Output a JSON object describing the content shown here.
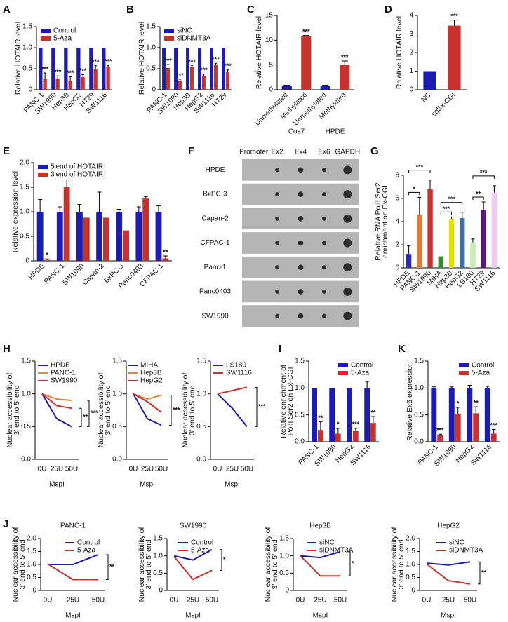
{
  "chart_data": [
    {
      "type": "bar",
      "label": "A",
      "ylabel": "Relative HOTAIR level",
      "categories": [
        "PANC-1",
        "SW1990",
        "Hep3B",
        "HepG2",
        "HT29",
        "SW1116"
      ],
      "series": [
        {
          "name": "Control",
          "color": "#1c1cb4",
          "values": [
            1,
            1,
            1,
            1,
            1,
            1
          ]
        },
        {
          "name": "5-Aza",
          "color": "#c8322c",
          "values": [
            0.25,
            0.27,
            0.21,
            0.3,
            0.49,
            0.55
          ],
          "errors": [
            0.15,
            0.06,
            0.1,
            0.06,
            0.08,
            0.03
          ],
          "significance": [
            "***",
            "***",
            "***",
            "***",
            "***",
            "***"
          ]
        }
      ],
      "ylim": [
        0,
        1.5
      ],
      "yticks": [
        0,
        0.5,
        {
          "value": 1,
          "label": "1.0"
        },
        1.5
      ],
      "legend": "upper left"
    },
    {
      "type": "bar",
      "label": "B",
      "ylabel": "Relative HOTAIR level",
      "categories": [
        "PANC-1",
        "SW1990",
        "Hep3B",
        "HepG2",
        "SW1116",
        "HT29"
      ],
      "series": [
        {
          "name": "siNC",
          "color": "#1c1cb4",
          "values": [
            1,
            1,
            1,
            1,
            1,
            1
          ]
        },
        {
          "name": "siDNMT3A",
          "color": "#c8322c",
          "values": [
            0.52,
            0.22,
            0.55,
            0.33,
            0.6,
            0.42
          ],
          "errors": [
            0.08,
            0.03,
            0.02,
            0.04,
            0.03,
            0.05
          ],
          "significance": [
            "***",
            "***",
            "***",
            "***",
            "***",
            "***"
          ]
        }
      ],
      "ylim": [
        0,
        1.5
      ],
      "yticks": [
        0,
        0.5,
        {
          "value": 1,
          "label": "1.0"
        },
        1.5
      ],
      "legend": "upper left"
    },
    {
      "type": "bar",
      "label": "C",
      "ylabel": "Relative HOTAIR level",
      "categories": [
        "Unmethylated",
        "Methylated",
        "Unmethylated",
        "Methylated"
      ],
      "values": [
        0.8,
        10.8,
        0.8,
        5.0
      ],
      "errors": [
        0.1,
        0.15,
        0.1,
        0.8
      ],
      "colors": [
        "#1c1cb4",
        "#c8322c",
        "#1c1cb4",
        "#c8322c"
      ],
      "significance": [
        null,
        "***",
        null,
        "***"
      ],
      "groups": [
        "Cos7",
        "HPDE"
      ],
      "ylim": [
        0,
        15
      ],
      "yticks": [
        0,
        5,
        10,
        15
      ]
    },
    {
      "type": "bar",
      "label": "D",
      "ylabel": "Relative HOTAIR level",
      "categories": [
        "NC",
        "sgEx-CGI"
      ],
      "values": [
        1,
        3.45
      ],
      "errors": [
        0,
        0.3
      ],
      "colors": [
        "#1c1cb4",
        "#c8322c"
      ],
      "significance": [
        null,
        "***"
      ],
      "ylim": [
        0,
        4
      ],
      "yticks": [
        0,
        1,
        2,
        3,
        4
      ]
    },
    {
      "type": "bar",
      "label": "E",
      "ylabel": "Relative expression level",
      "categories": [
        "HPDE",
        "PANC-1",
        "SW1990",
        "Capan-2",
        "BxPC-3",
        "Panc0403",
        "CFPAC-1"
      ],
      "series": [
        {
          "name": "5'end of HOTAIR",
          "color": "#1c1cb4",
          "values": [
            1,
            1,
            1,
            1,
            1,
            1,
            1
          ],
          "errors": [
            0.25,
            0.1,
            0.15,
            0.4,
            0.05,
            0.1,
            0.12
          ]
        },
        {
          "name": "3'end of HOTAIR",
          "color": "#c8322c",
          "values": [
            0.02,
            1.5,
            0.88,
            0.88,
            0.62,
            1.27,
            0.05
          ],
          "errors": [
            0.02,
            0.15,
            0,
            0,
            0,
            0.04,
            0.05
          ],
          "significance": [
            "*",
            null,
            null,
            null,
            null,
            null,
            "**"
          ]
        }
      ],
      "ylim": [
        0,
        2
      ],
      "yticks": [
        0,
        0.5,
        {
          "value": 1,
          "label": "1.0"
        },
        1.5,
        {
          "value": 2,
          "label": "2.0"
        }
      ],
      "legend": "upper left"
    },
    {
      "type": "blot",
      "label": "F",
      "columns": [
        "Promoter",
        "Ex2",
        "Ex4",
        "Ex6",
        "GAPDH"
      ],
      "rows": [
        "HPDE",
        "BxPC-3",
        "Capan-2",
        "CFPAC-1",
        "Panc-1",
        "Panc0403",
        "SW1990"
      ]
    },
    {
      "type": "bar",
      "label": "G",
      "ylabel": [
        "Relative RNA PolII Ser2",
        "enrichment on Ex-CGI"
      ],
      "categories": [
        "HPDE",
        "PANC-1",
        "SW1990",
        "MIHA",
        "Hep3B",
        "HepG2",
        "LS180",
        "HT29",
        "SW1116"
      ],
      "values": [
        1.2,
        4.6,
        6.8,
        1.0,
        4.2,
        4.3,
        2.2,
        5.0,
        6.5
      ],
      "errors": [
        0.7,
        1.5,
        0.8,
        0,
        0.2,
        0.5,
        0.3,
        0.7,
        0.6
      ],
      "colors": [
        "#2b2bb8",
        "#e07b39",
        "#c93030",
        "#3a8a2e",
        "#e8e000",
        "#3f6fa8",
        "#c6ecb0",
        "#5b1a7a",
        "#f0c8f0"
      ],
      "comparisons": [
        {
          "text": "*",
          "between": [
            "HPDE",
            "PANC-1"
          ]
        },
        {
          "text": "***",
          "between": [
            "HPDE",
            "SW1990"
          ]
        },
        {
          "text": "***",
          "between": [
            "MIHA",
            "Hep3B"
          ]
        },
        {
          "text": "***",
          "between": [
            "MIHA",
            "HepG2"
          ]
        },
        {
          "text": "**",
          "between": [
            "LS180",
            "HT29"
          ]
        },
        {
          "text": "***",
          "between": [
            "LS180",
            "SW1116"
          ]
        }
      ],
      "ylim": [
        0,
        8
      ],
      "yticks": [
        0,
        2,
        4,
        6,
        8
      ]
    },
    {
      "type": "line",
      "label": "H",
      "ylabel": [
        "Nuclear accessibility of",
        "3' end to 5' end"
      ],
      "xlabel": "MspI",
      "categories": [
        "0U",
        "25U",
        "50U"
      ],
      "series": [
        {
          "name": "HPDE",
          "color": "#1c1cb4",
          "values": [
            1,
            0.62,
            0.5
          ]
        },
        {
          "name": "PANC-1",
          "color": "#e08a3c",
          "values": [
            1,
            0.92,
            0.9
          ]
        },
        {
          "name": "SW1990",
          "color": "#c8322c",
          "values": [
            1,
            0.82,
            0.78
          ]
        }
      ],
      "brackets": [
        {
          "text": "**",
          "between": [
            "SW1990",
            "HPDE"
          ]
        },
        {
          "text": "***",
          "between": [
            "PANC-1",
            "HPDE"
          ]
        }
      ],
      "ylim": [
        0,
        1.5
      ],
      "yticks": [
        {
          "value": 0,
          "label": "0.0"
        },
        0.5,
        {
          "value": 1,
          "label": "1.0"
        },
        1.5
      ],
      "legend": "upper right"
    },
    {
      "type": "line",
      "ylabel": [
        "Nuclear accessibility of",
        "3' end to 5' end"
      ],
      "xlabel": "MspI",
      "categories": [
        "0U",
        "25U",
        "50U"
      ],
      "series": [
        {
          "name": "MIHA",
          "color": "#1c1cb4",
          "values": [
            1,
            0.62,
            0.52
          ]
        },
        {
          "name": "Hep3B",
          "color": "#e08a3c",
          "values": [
            1,
            0.92,
            0.98
          ]
        },
        {
          "name": "HepG2",
          "color": "#c8322c",
          "values": [
            1,
            0.88,
            0.72
          ]
        }
      ],
      "brackets": [
        {
          "text": "***",
          "between": [
            "Hep3B",
            "MIHA"
          ]
        }
      ],
      "ylim": [
        0,
        1.5
      ],
      "yticks": [
        {
          "value": 0,
          "label": "0.0"
        },
        0.5,
        {
          "value": 1,
          "label": "1.0"
        },
        1.5
      ],
      "legend": "upper right"
    },
    {
      "type": "line",
      "ylabel": [
        "Nuclear accessibility of",
        "3' end to 5' end"
      ],
      "xlabel": "MspI",
      "categories": [
        "0U",
        "25U",
        "50U"
      ],
      "series": [
        {
          "name": "LS180",
          "color": "#1c1cb4",
          "values": [
            1,
            0.78,
            0.5
          ]
        },
        {
          "name": "SW1116",
          "color": "#c8322c",
          "values": [
            1,
            1.05,
            1.1
          ]
        }
      ],
      "brackets": [
        {
          "text": "***",
          "between": [
            "SW1116",
            "LS180"
          ]
        }
      ],
      "ylim": [
        0,
        1.5
      ],
      "yticks": [
        {
          "value": 0,
          "label": "0.0"
        },
        0.5,
        {
          "value": 1,
          "label": "1.0"
        },
        1.5
      ],
      "legend": "upper right"
    },
    {
      "type": "bar",
      "label": "I",
      "ylabel": [
        "Relative enrichment of",
        "PolII Ser2 on Ex-CGI"
      ],
      "categories": [
        "PANC-1",
        "SW1990",
        "HepG2",
        "SW1116"
      ],
      "series": [
        {
          "name": "Control",
          "color": "#1c1cb4",
          "values": [
            1,
            1,
            1,
            1
          ],
          "errors": [
            0,
            0,
            0,
            0.12
          ]
        },
        {
          "name": "5-Aza",
          "color": "#c8322c",
          "values": [
            0.22,
            0.15,
            0.2,
            0.35
          ],
          "errors": [
            0.15,
            0.1,
            0.05,
            0.12
          ],
          "significance": [
            "**",
            "*",
            "***",
            "**"
          ]
        }
      ],
      "ylim": [
        0,
        1.5
      ],
      "yticks": [
        {
          "value": 0,
          "label": "0.0"
        },
        0.5,
        {
          "value": 1,
          "label": "1.0"
        },
        1.5
      ],
      "legend": "upper right"
    },
    {
      "type": "bar",
      "label": "K",
      "ylabel": "Relative Ex6 expression",
      "categories": [
        "PANC-1",
        "SW1990",
        "HepG2",
        "SW1116"
      ],
      "series": [
        {
          "name": "Control",
          "color": "#1c1cb4",
          "values": [
            1,
            1,
            1,
            1
          ],
          "errors": [
            0.02,
            0.02,
            0.05,
            0.03
          ]
        },
        {
          "name": "5-Aza",
          "color": "#c8322c",
          "values": [
            0.12,
            0.52,
            0.53,
            0.15
          ],
          "errors": [
            0.02,
            0.12,
            0.12,
            0.08
          ],
          "significance": [
            "***",
            "*",
            "**",
            "***"
          ]
        }
      ],
      "ylim": [
        0,
        1.5
      ],
      "yticks": [
        {
          "value": 0,
          "label": "0.0"
        },
        0.5,
        {
          "value": 1,
          "label": "1.0"
        },
        1.5
      ],
      "legend": "upper right"
    },
    {
      "type": "line",
      "label": "J",
      "title": "PANC-1",
      "ylabel": [
        "Nuclear accessibility of",
        "3' end to 5' end"
      ],
      "xlabel": "MspI",
      "categories": [
        "0U",
        "25U",
        "50U"
      ],
      "series": [
        {
          "name": "Control",
          "color": "#1c1cb4",
          "values": [
            1,
            1,
            1.38
          ]
        },
        {
          "name": "5-Aza",
          "color": "#c8322c",
          "values": [
            1.02,
            0.42,
            0.42
          ]
        }
      ],
      "brackets": [
        {
          "text": "**",
          "between": [
            "Control",
            "5-Aza"
          ]
        }
      ],
      "ylim": [
        0,
        2
      ],
      "yticks": [
        0,
        0.5,
        {
          "value": 1,
          "label": "1.0"
        },
        1.5,
        {
          "value": 2,
          "label": "2.0"
        }
      ],
      "legend": "upper right"
    },
    {
      "type": "line",
      "title": "SW1990",
      "ylabel": [
        "Nuclear accessibility of",
        "3' end to 5' end"
      ],
      "xlabel": "MspI",
      "categories": [
        "0U",
        "25U",
        "50U"
      ],
      "series": [
        {
          "name": "Control",
          "color": "#1c1cb4",
          "values": [
            1,
            0.88,
            1.18
          ]
        },
        {
          "name": "5-Aza",
          "color": "#c8322c",
          "values": [
            0.98,
            0.32,
            0.58
          ]
        }
      ],
      "brackets": [
        {
          "text": "*",
          "between": [
            "Control",
            "5-Aza"
          ]
        }
      ],
      "ylim": [
        0,
        1.5
      ],
      "yticks": [
        0,
        0.5,
        {
          "value": 1,
          "label": "1.0"
        },
        1.5
      ],
      "legend": "upper right"
    },
    {
      "type": "line",
      "title": "Hep3B",
      "ylabel": [
        "Nuclear accessibility of",
        "3' end to 5' end"
      ],
      "xlabel": "MspI",
      "categories": [
        "0U",
        "25U",
        "50U"
      ],
      "series": [
        {
          "name": "siNC",
          "color": "#1c1cb4",
          "values": [
            1,
            0.95,
            1.12
          ]
        },
        {
          "name": "siDNMT3A",
          "color": "#c8322c",
          "values": [
            1,
            0.42,
            0.42
          ]
        }
      ],
      "brackets": [
        {
          "text": "*",
          "between": [
            "siNC",
            "siDNMT3A"
          ]
        }
      ],
      "ylim": [
        0,
        1.5
      ],
      "yticks": [
        0,
        0.5,
        {
          "value": 1,
          "label": "1.0"
        },
        1.5
      ],
      "legend": "upper right"
    },
    {
      "type": "line",
      "title": "HepG2",
      "ylabel": [
        "Nuclear accessibility of",
        "3' end to 5' end"
      ],
      "xlabel": "MspI",
      "categories": [
        "0U",
        "25U",
        "50U"
      ],
      "series": [
        {
          "name": "siNC",
          "color": "#1c1cb4",
          "values": [
            1.05,
            0.98,
            1.1
          ]
        },
        {
          "name": "siDNMT3A",
          "color": "#c8322c",
          "values": [
            1.02,
            0.38,
            0.25
          ]
        }
      ],
      "brackets": [
        {
          "text": "**",
          "between": [
            "siNC",
            "siDNMT3A"
          ]
        }
      ],
      "ylim": [
        0,
        2
      ],
      "yticks": [
        0,
        0.5,
        {
          "value": 1,
          "label": "1.0"
        },
        1.5,
        {
          "value": 2,
          "label": "2.0"
        }
      ],
      "legend": "upper right"
    }
  ]
}
